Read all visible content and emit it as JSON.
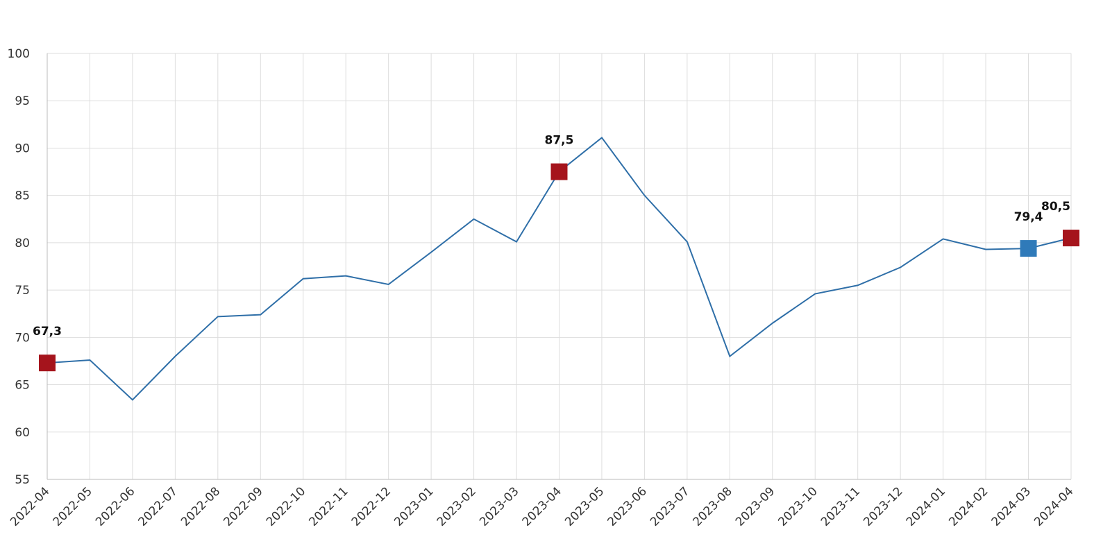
{
  "chart_data": {
    "type": "line",
    "categories": [
      "2022-04",
      "2022-05",
      "2022-06",
      "2022-07",
      "2022-08",
      "2022-09",
      "2022-10",
      "2022-11",
      "2022-12",
      "2023-01",
      "2023-02",
      "2023-03",
      "2023-04",
      "2023-05",
      "2023-06",
      "2023-07",
      "2023-08",
      "2023-09",
      "2023-10",
      "2023-11",
      "2023-12",
      "2024-01",
      "2024-02",
      "2024-03",
      "2024-04"
    ],
    "values": [
      67.3,
      67.6,
      63.4,
      68.0,
      72.2,
      72.4,
      76.2,
      76.5,
      75.6,
      79.0,
      82.5,
      80.1,
      87.5,
      91.1,
      85.0,
      80.1,
      68.0,
      71.5,
      74.6,
      75.5,
      77.4,
      80.4,
      79.3,
      79.4,
      80.5
    ],
    "value_labels": [
      "67,3",
      null,
      null,
      null,
      null,
      null,
      null,
      null,
      null,
      null,
      null,
      null,
      "87,5",
      null,
      null,
      null,
      null,
      null,
      null,
      null,
      null,
      null,
      null,
      "79,4",
      "80,5"
    ],
    "point_colors": [
      "#a5141c",
      null,
      null,
      null,
      null,
      null,
      null,
      null,
      null,
      null,
      null,
      null,
      "#a5141c",
      null,
      null,
      null,
      null,
      null,
      null,
      null,
      null,
      null,
      null,
      "#2f7ab9",
      "#a5141c"
    ],
    "color": "#2f6fa8",
    "ylim": [
      55,
      100
    ],
    "yticks": [
      55,
      60,
      65,
      70,
      75,
      80,
      85,
      90,
      95,
      100
    ],
    "grid": true
  }
}
